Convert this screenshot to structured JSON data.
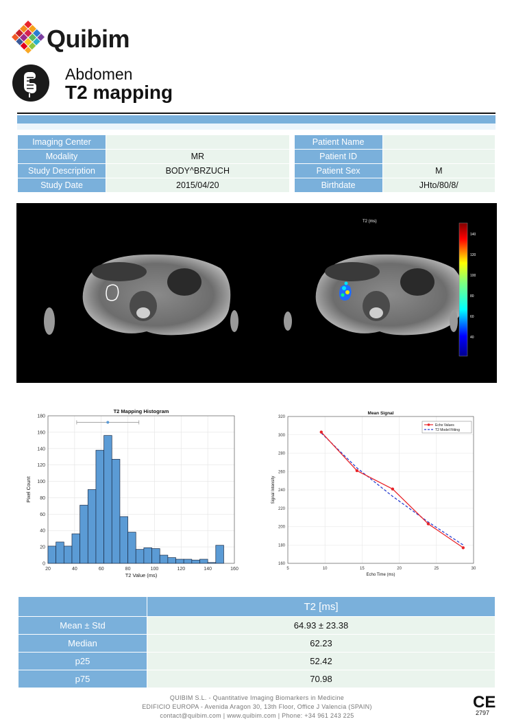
{
  "brand": {
    "name": "Quibim"
  },
  "report": {
    "region": "Abdomen",
    "title": "T2 mapping"
  },
  "info": {
    "rows": [
      {
        "l1": "Imaging Center",
        "v1": "",
        "l2": "Patient Name",
        "v2": ""
      },
      {
        "l1": "Modality",
        "v1": "MR",
        "l2": "Patient ID",
        "v2": ""
      },
      {
        "l1": "Study Description",
        "v1": "BODY^BRZUCH",
        "l2": "Patient Sex",
        "v2": "M"
      },
      {
        "l1": "Study Date",
        "v1": "2015/04/20",
        "l2": "Birthdate",
        "v2": "JHto/80/8/"
      }
    ]
  },
  "colorbar": {
    "title": "T2 (ms)",
    "ticks": [
      "140",
      "120",
      "100",
      "80",
      "60",
      "40"
    ]
  },
  "chart_data": [
    {
      "type": "bar",
      "title": "T2 Mapping Histogram",
      "xlabel": "T2 Value (ms)",
      "ylabel": "Pixel Count",
      "xlim": [
        20,
        160
      ],
      "ylim": [
        0,
        180
      ],
      "xticks": [
        20,
        40,
        60,
        80,
        100,
        120,
        140,
        160
      ],
      "yticks": [
        0,
        20,
        40,
        60,
        80,
        100,
        120,
        140,
        160,
        180
      ],
      "bin_width": 6,
      "bin_starts": [
        20,
        26,
        32,
        38,
        44,
        50,
        56,
        62,
        68,
        74,
        80,
        86,
        92,
        98,
        104,
        110,
        116,
        122,
        128,
        134,
        140,
        146
      ],
      "values": [
        21,
        26,
        21,
        36,
        71,
        90,
        138,
        156,
        127,
        57,
        38,
        17,
        19,
        18,
        10,
        7,
        5,
        5,
        4,
        5,
        1,
        22
      ],
      "errorbar": {
        "mean": 64.93,
        "low": 41.55,
        "high": 88.31,
        "y": 172
      }
    },
    {
      "type": "line",
      "title": "Mean Signal",
      "xlabel": "Echo Time (ms)",
      "ylabel": "Signal Intensity",
      "xlim": [
        5,
        30
      ],
      "ylim": [
        160,
        320
      ],
      "xticks": [
        5,
        10,
        15,
        20,
        25,
        30
      ],
      "yticks": [
        160,
        180,
        200,
        220,
        240,
        260,
        280,
        300,
        320
      ],
      "legend": {
        "position": "top-right",
        "entries": [
          "Echo Values",
          "T2 Model Fitting"
        ]
      },
      "series": [
        {
          "name": "Echo Values",
          "color": "#e8252a",
          "x": [
            9.5,
            14.3,
            19.1,
            23.9,
            28.6
          ],
          "y": [
            303,
            261,
            241,
            203,
            177
          ]
        },
        {
          "name": "T2 Model Fitting",
          "color": "#2a3fd1",
          "x": [
            9.5,
            14.3,
            19.1,
            23.9,
            28.6
          ],
          "y": [
            302,
            264,
            233,
            205,
            180
          ]
        }
      ]
    }
  ],
  "stats": {
    "header": "T2 [ms]",
    "rows": [
      {
        "label": "Mean ± Std",
        "value": "64.93 ± 23.38"
      },
      {
        "label": "Median",
        "value": "62.23"
      },
      {
        "label": "p25",
        "value": "52.42"
      },
      {
        "label": "p75",
        "value": "70.98"
      }
    ]
  },
  "footer": {
    "line1": "QUIBIM S.L. - Quantitative Imaging Biomarkers in Medicine",
    "line2": "EDIFICIO EUROPA - Avenida Aragon 30, 13th Floor, Office J Valencia (SPAIN)",
    "line3": "contact@quibim.com  |  www.quibim.com  |    Phone: +34 961 243 225"
  },
  "ce": {
    "mark": "CE",
    "number": "2797"
  },
  "colors": {
    "accent": "#7ab0db",
    "value_bg": "#eaf4ed",
    "bar_fill": "#5b9bd5"
  }
}
